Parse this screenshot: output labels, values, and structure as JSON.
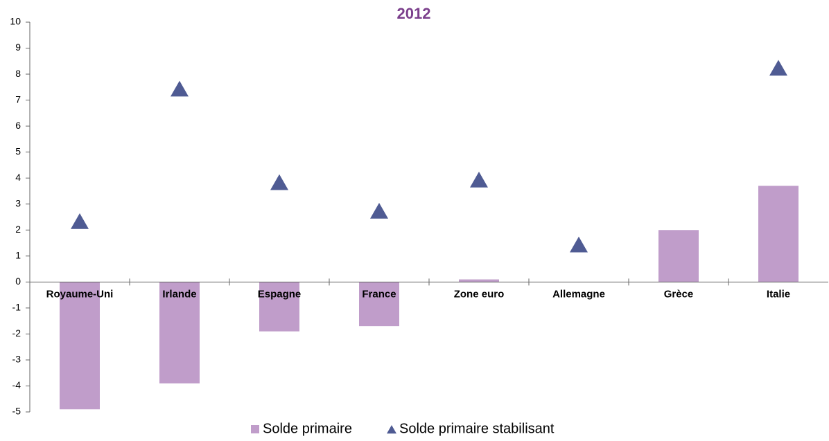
{
  "chart_data": {
    "type": "combo",
    "title": "2012",
    "categories": [
      "Royaume-Uni",
      "Irlande",
      "Espagne",
      "France",
      "Zone euro",
      "Allemagne",
      "Grèce",
      "Italie"
    ],
    "series": [
      {
        "name": "Solde primaire",
        "type": "bar",
        "color": "#c09dca",
        "values": [
          -4.9,
          -3.9,
          -1.9,
          -1.7,
          0.1,
          0,
          2.0,
          3.7
        ]
      },
      {
        "name": "Solde primaire stabilisant",
        "type": "scatter",
        "marker": "triangle",
        "color": "#4f5b93",
        "values": [
          2.3,
          7.4,
          3.8,
          2.7,
          3.9,
          1.4,
          null,
          8.2
        ]
      }
    ],
    "ylim": [
      -5,
      10
    ],
    "yticks": [
      -5,
      -4,
      -3,
      -2,
      -1,
      0,
      1,
      2,
      3,
      4,
      5,
      6,
      7,
      8,
      9,
      10
    ],
    "grid": false,
    "legend": "bottom"
  }
}
